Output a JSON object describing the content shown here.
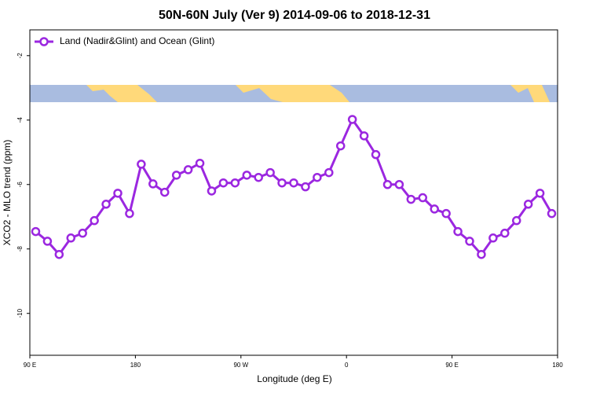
{
  "chart_data": {
    "type": "line",
    "title": "50N-60N July (Ver 9)   2014-09-06 to 2018-12-31",
    "x_label": "Longitude (deg E)",
    "y_label": "XCO2 - MLO trend (ppm)",
    "x": [
      95,
      105,
      115,
      125,
      135,
      145,
      155,
      165,
      175,
      185,
      195,
      205,
      215,
      225,
      235,
      245,
      255,
      265,
      275,
      285,
      295,
      305,
      315,
      325,
      335,
      345,
      355,
      365,
      375,
      385,
      395,
      405,
      415,
      425,
      435,
      445,
      455,
      465,
      475,
      485,
      495,
      505,
      515,
      525,
      535
    ],
    "series": [
      {
        "name": "Land (Nadir&Glint) and Ocean (Glint)",
        "color": "#9b27e0",
        "values": [
          -7.46,
          -7.76,
          -8.17,
          -7.66,
          -7.51,
          -7.12,
          -6.61,
          -6.27,
          -6.9,
          -5.37,
          -5.98,
          -6.24,
          -5.71,
          -5.54,
          -5.34,
          -6.2,
          -5.95,
          -5.95,
          -5.71,
          -5.78,
          -5.63,
          -5.95,
          -5.95,
          -6.07,
          -5.78,
          -5.63,
          -4.8,
          -3.98,
          -4.49,
          -5.07,
          -6.0,
          -6.0,
          -6.46,
          -6.41,
          -6.76,
          -6.9,
          -7.46,
          -7.76,
          -8.17,
          -7.66,
          -7.51,
          -7.12,
          -6.61,
          -6.27,
          -6.9
        ]
      }
    ],
    "xlim": [
      90,
      540
    ],
    "xticks": [
      {
        "value": 90,
        "label": "90 E"
      },
      180,
      {
        "value": 270,
        "label": "90 W"
      },
      {
        "value": 360,
        "label": "0"
      },
      {
        "value": 450,
        "label": "90 E"
      },
      {
        "value": 540,
        "label": "180"
      }
    ],
    "ylim": [
      -11.3,
      -1.2
    ],
    "yticks": [
      -2,
      -4,
      -6,
      -8,
      -10
    ],
    "legend": "top-left"
  }
}
